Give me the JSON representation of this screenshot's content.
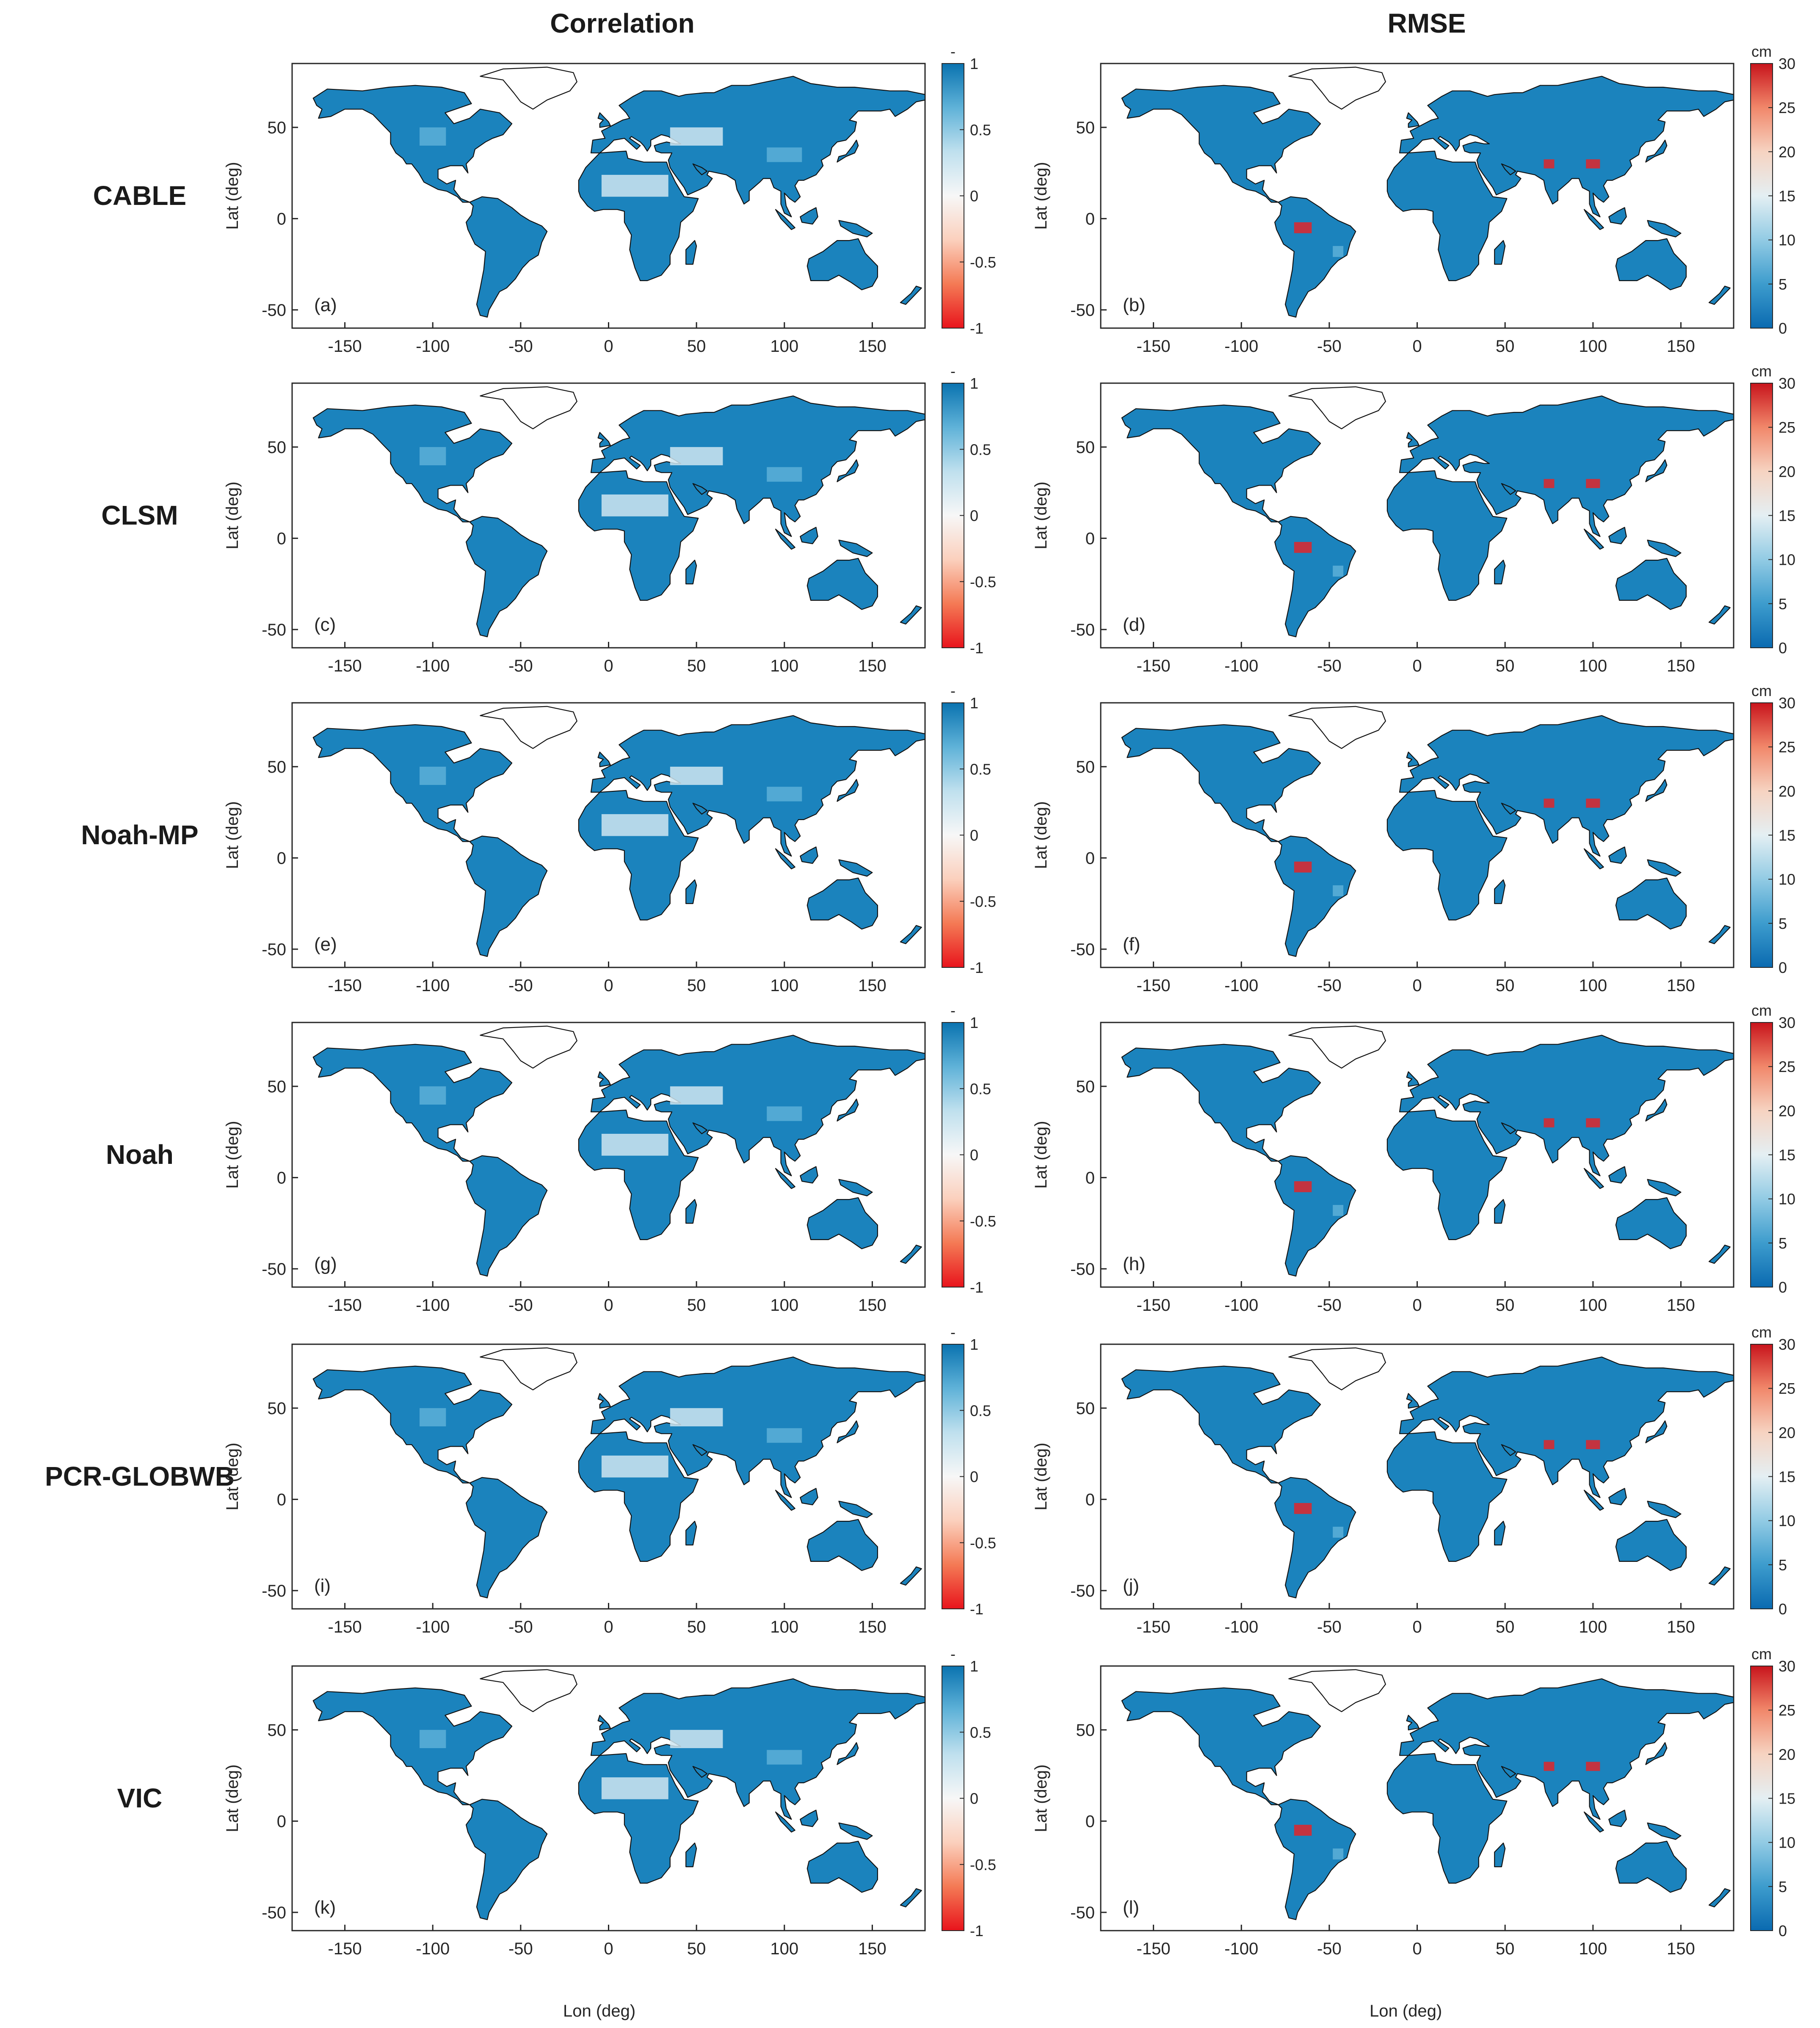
{
  "column_titles": {
    "correlation": "Correlation",
    "rmse": "RMSE"
  },
  "models": [
    "CABLE",
    "CLSM",
    "Noah-MP",
    "Noah",
    "PCR-GLOBWB",
    "VIC"
  ],
  "panel_letters": [
    "(a)",
    "(b)",
    "(c)",
    "(d)",
    "(e)",
    "(f)",
    "(g)",
    "(h)",
    "(i)",
    "(j)",
    "(k)",
    "(l)"
  ],
  "axes": {
    "xlabel": "Lon (deg)",
    "ylabel": "Lat (deg)",
    "x_ticks": [
      "-150",
      "-100",
      "-50",
      "0",
      "50",
      "100",
      "150"
    ],
    "y_ticks": [
      "50",
      "0",
      "-50"
    ]
  },
  "colorbars": {
    "correlation": {
      "unit": "-",
      "range": [
        -1,
        1
      ],
      "ticks": [
        "1",
        "0.5",
        "0",
        "-0.5",
        "-1"
      ],
      "colors": [
        "#e8141c",
        "#f47a55",
        "#fbd0bd",
        "#f7f7f7",
        "#bfe0ee",
        "#5fb2d8",
        "#0a73b0"
      ]
    },
    "rmse": {
      "unit": "cm",
      "range": [
        0,
        30
      ],
      "ticks": [
        "30",
        "25",
        "20",
        "15",
        "10",
        "5",
        "0"
      ],
      "colors": [
        "#0a6ab0",
        "#3d9ccd",
        "#92cbe4",
        "#e4eff3",
        "#f6d3c1",
        "#f1876a",
        "#c8141c"
      ]
    }
  },
  "map_colors": {
    "ocean": "#ffffff",
    "land_low": "#1b83bd",
    "land_mid": "#5cb0d8",
    "land_pale": "#cfe6f1",
    "red": "#e0262a",
    "coast": "#111111"
  },
  "chart_data": [
    {
      "type": "heatmap",
      "panel": "(a)",
      "model": "CABLE",
      "metric": "Correlation",
      "xlabel": "Lon (deg)",
      "ylabel": "Lat (deg)",
      "xlim": [
        -180,
        180
      ],
      "ylim": [
        -60,
        85
      ],
      "colorbar_range": [
        -1,
        1
      ]
    },
    {
      "type": "heatmap",
      "panel": "(b)",
      "model": "CABLE",
      "metric": "RMSE",
      "xlabel": "Lon (deg)",
      "ylabel": "Lat (deg)",
      "xlim": [
        -180,
        180
      ],
      "ylim": [
        -60,
        85
      ],
      "colorbar_range": [
        0,
        30
      ]
    },
    {
      "type": "heatmap",
      "panel": "(c)",
      "model": "CLSM",
      "metric": "Correlation",
      "xlabel": "Lon (deg)",
      "ylabel": "Lat (deg)",
      "xlim": [
        -180,
        180
      ],
      "ylim": [
        -60,
        85
      ],
      "colorbar_range": [
        -1,
        1
      ]
    },
    {
      "type": "heatmap",
      "panel": "(d)",
      "model": "CLSM",
      "metric": "RMSE",
      "xlabel": "Lon (deg)",
      "ylabel": "Lat (deg)",
      "xlim": [
        -180,
        180
      ],
      "ylim": [
        -60,
        85
      ],
      "colorbar_range": [
        0,
        30
      ]
    },
    {
      "type": "heatmap",
      "panel": "(e)",
      "model": "Noah-MP",
      "metric": "Correlation",
      "xlabel": "Lon (deg)",
      "ylabel": "Lat (deg)",
      "xlim": [
        -180,
        180
      ],
      "ylim": [
        -60,
        85
      ],
      "colorbar_range": [
        -1,
        1
      ]
    },
    {
      "type": "heatmap",
      "panel": "(f)",
      "model": "Noah-MP",
      "metric": "RMSE",
      "xlabel": "Lon (deg)",
      "ylabel": "Lat (deg)",
      "xlim": [
        -180,
        180
      ],
      "ylim": [
        -60,
        85
      ],
      "colorbar_range": [
        0,
        30
      ]
    },
    {
      "type": "heatmap",
      "panel": "(g)",
      "model": "Noah",
      "metric": "Correlation",
      "xlabel": "Lon (deg)",
      "ylabel": "Lat (deg)",
      "xlim": [
        -180,
        180
      ],
      "ylim": [
        -60,
        85
      ],
      "colorbar_range": [
        -1,
        1
      ]
    },
    {
      "type": "heatmap",
      "panel": "(h)",
      "model": "Noah",
      "metric": "RMSE",
      "xlabel": "Lon (deg)",
      "ylabel": "Lat (deg)",
      "xlim": [
        -180,
        180
      ],
      "ylim": [
        -60,
        85
      ],
      "colorbar_range": [
        0,
        30
      ]
    },
    {
      "type": "heatmap",
      "panel": "(i)",
      "model": "PCR-GLOBWB",
      "metric": "Correlation",
      "xlabel": "Lon (deg)",
      "ylabel": "Lat (deg)",
      "xlim": [
        -180,
        180
      ],
      "ylim": [
        -60,
        85
      ],
      "colorbar_range": [
        -1,
        1
      ]
    },
    {
      "type": "heatmap",
      "panel": "(j)",
      "model": "PCR-GLOBWB",
      "metric": "RMSE",
      "xlabel": "Lon (deg)",
      "ylabel": "Lat (deg)",
      "xlim": [
        -180,
        180
      ],
      "ylim": [
        -60,
        85
      ],
      "colorbar_range": [
        0,
        30
      ]
    },
    {
      "type": "heatmap",
      "panel": "(k)",
      "model": "VIC",
      "metric": "Correlation",
      "xlabel": "Lon (deg)",
      "ylabel": "Lat (deg)",
      "xlim": [
        -180,
        180
      ],
      "ylim": [
        -60,
        85
      ],
      "colorbar_range": [
        -1,
        1
      ]
    },
    {
      "type": "heatmap",
      "panel": "(l)",
      "model": "VIC",
      "metric": "RMSE",
      "xlabel": "Lon (deg)",
      "ylabel": "Lat (deg)",
      "xlim": [
        -180,
        180
      ],
      "ylim": [
        -60,
        85
      ],
      "colorbar_range": [
        0,
        30
      ]
    }
  ]
}
